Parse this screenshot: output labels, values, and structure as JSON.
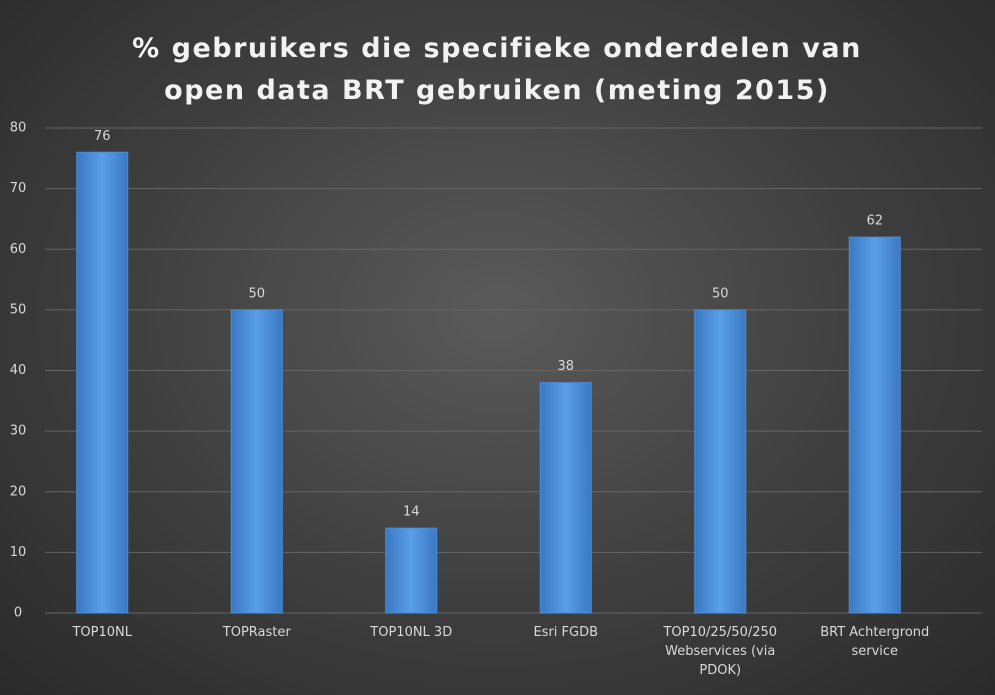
{
  "chart_data": {
    "type": "bar",
    "title": "% gebruikers die specifieke onderdelen van open data BRT gebruiken (meting 2015)",
    "categories": [
      "TOP10NL",
      "TOPRaster",
      "TOP10NL 3D",
      "Esri FGDB",
      "TOP10/25/50/250 Webservices (via PDOK)",
      "BRT Achtergrond service"
    ],
    "values": [
      76,
      50,
      14,
      38,
      50,
      62
    ],
    "color": "#4a8fdc",
    "ylim": [
      0,
      80
    ],
    "yticks": [
      0,
      10,
      20,
      30,
      40,
      50,
      60,
      70,
      80
    ],
    "grid": true
  }
}
